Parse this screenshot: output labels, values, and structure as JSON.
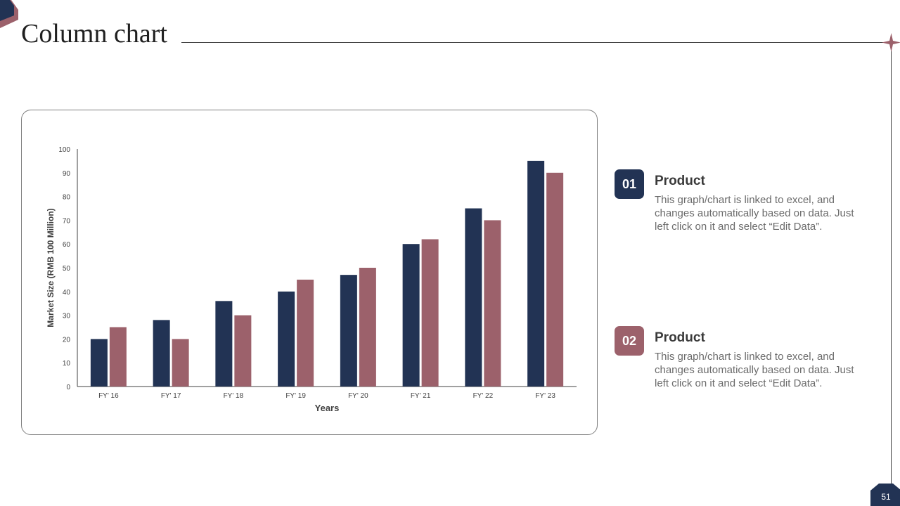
{
  "title": "Column chart",
  "page_number": "51",
  "colors": {
    "navy": "#223354",
    "mauve": "#9c616b",
    "text_dark": "#3a3a3a",
    "text_gray": "#6b6b6b"
  },
  "info_items": [
    {
      "number": "01",
      "title": "Product",
      "description": "This graph/chart is linked to excel, and changes automatically based on data. Just left click on it and select “Edit Data”.",
      "color": "#223354"
    },
    {
      "number": "02",
      "title": "Product",
      "description": "This graph/chart is linked to excel, and changes automatically based on data. Just left click on it and select “Edit Data”.",
      "color": "#9c616b"
    }
  ],
  "chart_data": {
    "type": "bar",
    "categories": [
      "FY' 16",
      "FY' 17",
      "FY' 18",
      "FY' 19",
      "FY' 20",
      "FY' 21",
      "FY' 22",
      "FY' 23"
    ],
    "series": [
      {
        "values": [
          20,
          28,
          36,
          40,
          47,
          60,
          75,
          95
        ],
        "color": "#223354"
      },
      {
        "values": [
          25,
          20,
          30,
          45,
          50,
          62,
          70,
          90
        ],
        "color": "#9c616b"
      }
    ],
    "xlabel": "Years",
    "ylabel": "Market Size (RMB 100 Million)",
    "ylim": [
      0,
      100
    ],
    "yticks": [
      0,
      10,
      20,
      30,
      40,
      50,
      60,
      70,
      80,
      90,
      100
    ],
    "grid": false,
    "legend": "none"
  }
}
